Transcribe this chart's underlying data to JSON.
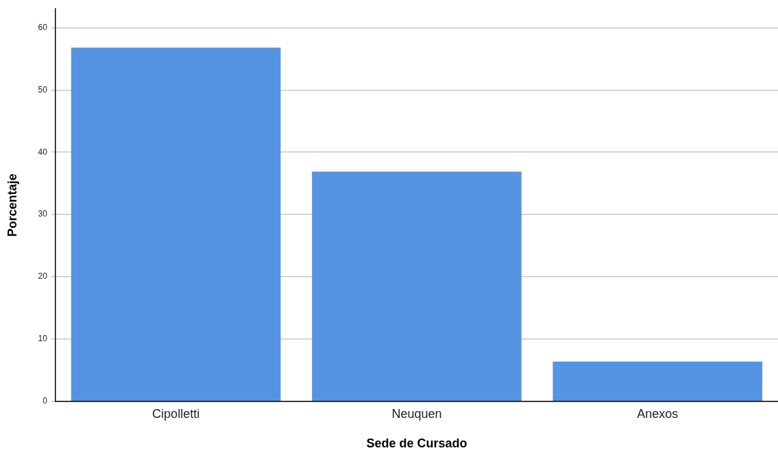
{
  "chart_data": {
    "type": "bar",
    "xlabel": "Sede de Cursado",
    "ylabel": "Porcentaje",
    "categories": [
      "Cipolletti",
      "Neuquen",
      "Anexos"
    ],
    "values": [
      56.8,
      36.9,
      6.4
    ],
    "color": "#5594e2",
    "ylim": [
      0,
      63
    ],
    "yticks": [
      0,
      10,
      20,
      30,
      40,
      50,
      60
    ],
    "grid": "y",
    "legend": false
  }
}
